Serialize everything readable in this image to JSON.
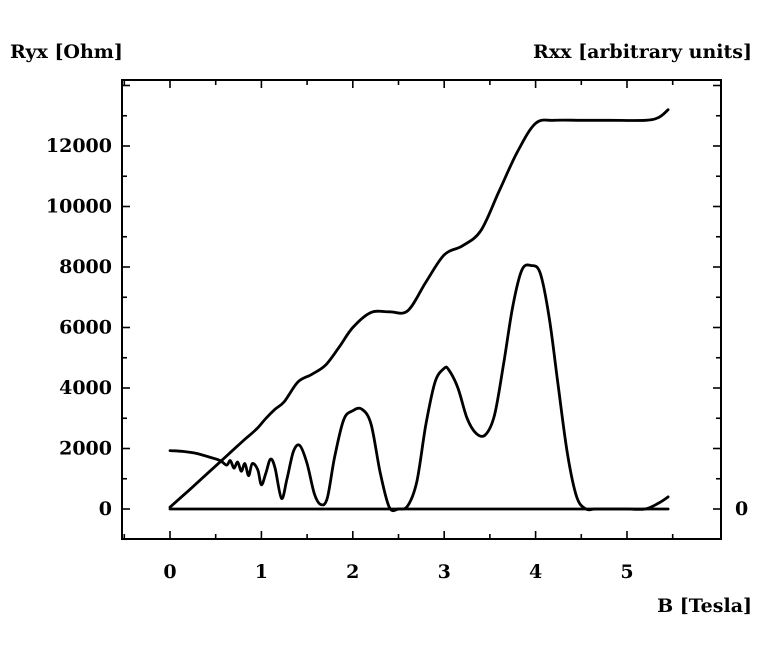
{
  "chart_data": {
    "type": "line",
    "title": "",
    "ylabel_left": "Ryx [Ohm]",
    "ylabel_right": "Rxx [arbitrary units]",
    "xlabel": "B [Tesla]",
    "xlim": [
      -0.5,
      5.85
    ],
    "ylim_left": [
      -1000,
      14000
    ],
    "x_ticks": [
      0,
      1,
      2,
      3,
      4,
      5
    ],
    "x_tick_labels": [
      "0",
      "1",
      "2",
      "3",
      "4",
      "5"
    ],
    "y_ticks_left": [
      0,
      2000,
      4000,
      6000,
      8000,
      10000,
      12000
    ],
    "y_tick_labels_left": [
      "0",
      "2000",
      "4000",
      "6000",
      "8000",
      "10000",
      "12000"
    ],
    "y_ticks_right": [
      0
    ],
    "y_tick_labels_right": [
      "0"
    ],
    "grid": false,
    "series": [
      {
        "axis": "left",
        "x": [
          0,
          0.2,
          0.4,
          0.6,
          0.8,
          0.95,
          1.05,
          1.15,
          1.25,
          1.4,
          1.55,
          1.7,
          1.85,
          2.0,
          2.2,
          2.4,
          2.6,
          2.8,
          3.0,
          3.2,
          3.4,
          3.6,
          3.8,
          4.0,
          4.2,
          4.5,
          4.8,
          5.2,
          5.35,
          5.45
        ],
        "y": [
          60,
          600,
          1150,
          1700,
          2250,
          2650,
          3000,
          3300,
          3550,
          4200,
          4450,
          4750,
          5350,
          6000,
          6500,
          6520,
          6550,
          7500,
          8400,
          8700,
          9200,
          10500,
          11800,
          12750,
          12850,
          12850,
          12850,
          12850,
          12950,
          13200
        ]
      },
      {
        "axis": "right",
        "x": [
          0,
          0.15,
          0.3,
          0.45,
          0.55,
          0.62,
          0.66,
          0.7,
          0.74,
          0.78,
          0.82,
          0.86,
          0.9,
          0.96,
          1.0,
          1.05,
          1.1,
          1.15,
          1.22,
          1.28,
          1.35,
          1.42,
          1.5,
          1.58,
          1.65,
          1.72,
          1.8,
          1.9,
          2.0,
          2.1,
          2.2,
          2.3,
          2.4,
          2.5,
          2.6,
          2.7,
          2.8,
          2.9,
          3.0,
          3.05,
          3.15,
          3.25,
          3.35,
          3.45,
          3.55,
          3.65,
          3.75,
          3.85,
          3.95,
          4.05,
          4.15,
          4.25,
          4.35,
          4.45,
          4.55,
          4.65,
          4.8,
          5.0,
          5.2,
          5.35,
          5.45
        ],
        "y": [
          1930,
          1900,
          1830,
          1700,
          1600,
          1450,
          1600,
          1350,
          1550,
          1250,
          1500,
          1100,
          1500,
          1300,
          800,
          1200,
          1650,
          1350,
          350,
          1000,
          1900,
          2100,
          1500,
          500,
          150,
          350,
          1700,
          2950,
          3250,
          3300,
          2800,
          1200,
          50,
          0,
          100,
          900,
          2800,
          4200,
          4650,
          4600,
          4000,
          3000,
          2500,
          2450,
          3100,
          4800,
          6700,
          7900,
          8050,
          7800,
          6300,
          4000,
          1800,
          400,
          0,
          0,
          0,
          0,
          0,
          200,
          400
        ]
      },
      {
        "axis": "left",
        "x": [
          0,
          5.45
        ],
        "y": [
          0,
          0
        ]
      }
    ]
  }
}
